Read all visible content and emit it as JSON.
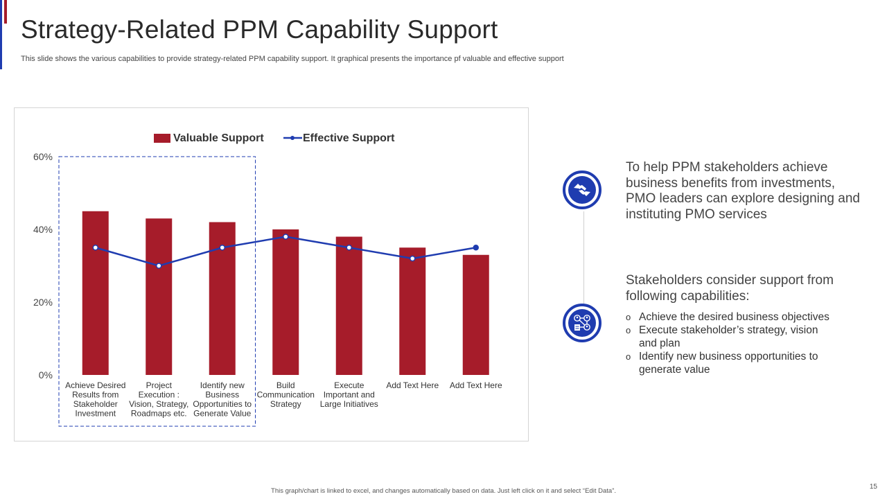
{
  "title": "Strategy-Related PPM Capability Support",
  "subtitle": "This slide shows the various capabilities to provide strategy-related PPM capability support. It graphical presents the importance pf valuable and effective support",
  "colors": {
    "bar": "#a61c2a",
    "line": "#1f3cb0",
    "accent_red": "#a61c2a",
    "accent_blue": "#1f3cb0"
  },
  "chart_data": {
    "type": "bar",
    "categories": [
      [
        "Achieve Desired",
        "Results from",
        "Stakeholder",
        "Investment"
      ],
      [
        "Project",
        "Execution :",
        "Vision, Strategy,",
        "Roadmaps etc."
      ],
      [
        "Identify new",
        "Business",
        "Opportunities to",
        "Generate Value"
      ],
      [
        "Build",
        "Communication",
        "Strategy"
      ],
      [
        "Execute",
        "Important and",
        "Large Initiatives"
      ],
      [
        "Add Text Here"
      ],
      [
        "Add Text Here"
      ]
    ],
    "series": [
      {
        "name": "Valuable Support",
        "type": "bar",
        "values": [
          45,
          43,
          42,
          40,
          38,
          35,
          33
        ]
      },
      {
        "name": "Effective Support",
        "type": "line",
        "values": [
          35,
          30,
          35,
          38,
          35,
          32,
          35
        ]
      }
    ],
    "ylim": [
      0,
      60
    ],
    "yticks": [
      "0%",
      "20%",
      "40%",
      "60%"
    ],
    "ytick_values": [
      0,
      20,
      40,
      60
    ],
    "legend": "top-center",
    "highlight_categories": [
      0,
      1,
      2
    ]
  },
  "panel": {
    "text1": "To help PPM stakeholders achieve business benefits from investments, PMO leaders can explore designing and instituting PMO services",
    "text2": "Stakeholders consider support from following capabilities:",
    "bullet_marker": "o",
    "bullets": [
      "Achieve the desired business objectives",
      "Execute stakeholder’s strategy, vision and plan",
      "Identify  new business opportunities to generate value"
    ],
    "icon1": "handshake-icon",
    "icon2": "stakeholder-network-icon"
  },
  "footer": "This graph/chart is linked to excel, and changes automatically based on data. Just left click on it and select “Edit Data”.",
  "page_number": "15"
}
